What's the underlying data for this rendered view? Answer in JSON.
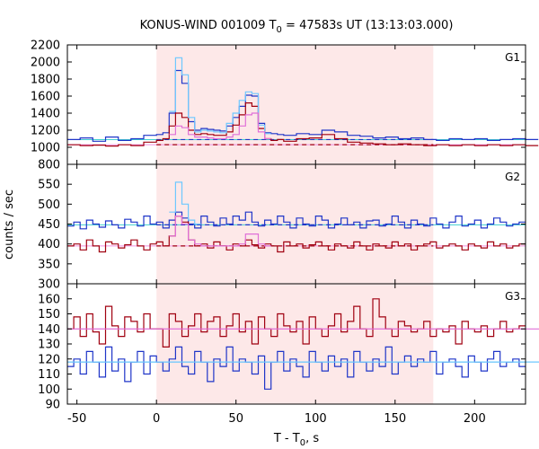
{
  "chart_data": {
    "type": "line",
    "title_main": "KONUS-WIND 001009 T",
    "title_sub": "0",
    "title_rest": " = 47583s UT (13:13:03.000)",
    "xlabel_main": "T - T",
    "xlabel_sub": "0",
    "xlabel_rest": ", s",
    "ylabel": "counts / sec",
    "xlim": [
      -56,
      232
    ],
    "xticks": [
      -50,
      0,
      50,
      100,
      150,
      200
    ],
    "highlight_interval": [
      0,
      174
    ],
    "colors": {
      "highlight": "#fde8e8",
      "blue": "#1f35c8",
      "darkred": "#a00010",
      "lightblue": "#6ec8ff",
      "pink": "#e070d8",
      "cyan_bg": "#40d0d0",
      "pink_bg": "#f090e0"
    },
    "panels": [
      {
        "label": "G1",
        "ylim": [
          800,
          2200
        ],
        "yticks": [
          800,
          1000,
          1200,
          1400,
          1600,
          1800,
          2000,
          2200
        ],
        "background_blue": 1090,
        "background_red": 1030,
        "series": [
          {
            "name": "blue",
            "x": [
              -56,
              -48,
              -40,
              -32,
              -24,
              -16,
              -8,
              0,
              4,
              8,
              12,
              16,
              20,
              24,
              28,
              32,
              36,
              40,
              44,
              48,
              52,
              56,
              60,
              64,
              68,
              72,
              76,
              80,
              88,
              96,
              104,
              112,
              120,
              128,
              136,
              144,
              152,
              160,
              168,
              176,
              184,
              192,
              200,
              208,
              216,
              224,
              232
            ],
            "y": [
              1090,
              1110,
              1070,
              1120,
              1080,
              1100,
              1140,
              1150,
              1170,
              1400,
              1900,
              1750,
              1300,
              1200,
              1220,
              1210,
              1200,
              1190,
              1250,
              1350,
              1480,
              1610,
              1600,
              1280,
              1170,
              1160,
              1150,
              1140,
              1160,
              1150,
              1200,
              1180,
              1140,
              1130,
              1110,
              1120,
              1100,
              1110,
              1090,
              1080,
              1100,
              1090,
              1100,
              1080,
              1090,
              1100,
              1090
            ]
          },
          {
            "name": "darkred",
            "x": [
              -56,
              -48,
              -40,
              -32,
              -24,
              -16,
              -8,
              0,
              4,
              8,
              12,
              16,
              20,
              24,
              28,
              32,
              36,
              40,
              44,
              48,
              52,
              56,
              60,
              64,
              68,
              72,
              76,
              80,
              88,
              96,
              104,
              112,
              120,
              128,
              136,
              144,
              152,
              160,
              168,
              176,
              184,
              192,
              200,
              208,
              216,
              224,
              232
            ],
            "y": [
              1030,
              1020,
              1025,
              1015,
              1030,
              1020,
              1060,
              1080,
              1100,
              1250,
              1400,
              1350,
              1200,
              1150,
              1160,
              1150,
              1140,
              1140,
              1180,
              1260,
              1380,
              1520,
              1480,
              1220,
              1100,
              1080,
              1090,
              1070,
              1100,
              1110,
              1150,
              1100,
              1060,
              1050,
              1040,
              1030,
              1040,
              1030,
              1020,
              1030,
              1020,
              1030,
              1020,
              1030,
              1020,
              1030,
              1020
            ]
          },
          {
            "name": "lightblue",
            "x": [
              8,
              12,
              16,
              20,
              24,
              28,
              32,
              36,
              40,
              44,
              48,
              52,
              56,
              60,
              64,
              68
            ],
            "y": [
              1420,
              2050,
              1850,
              1350,
              1180,
              1200,
              1190,
              1180,
              1170,
              1280,
              1400,
              1550,
              1650,
              1630,
              1260,
              1160
            ]
          },
          {
            "name": "pink",
            "x": [
              8,
              12,
              16,
              20,
              24,
              28,
              32,
              36,
              40,
              44,
              48,
              52,
              56,
              60,
              64,
              68
            ],
            "y": [
              1150,
              1250,
              1230,
              1150,
              1120,
              1120,
              1110,
              1100,
              1100,
              1120,
              1150,
              1250,
              1380,
              1400,
              1180,
              1100
            ]
          }
        ]
      },
      {
        "label": "G2",
        "ylim": [
          300,
          600
        ],
        "yticks": [
          300,
          350,
          400,
          450,
          500,
          550
        ],
        "background_blue": 448,
        "background_red": 395,
        "series": [
          {
            "name": "blue",
            "x": [
              -56,
              -52,
              -48,
              -44,
              -40,
              -36,
              -32,
              -28,
              -24,
              -20,
              -16,
              -12,
              -8,
              -4,
              0,
              4,
              8,
              12,
              16,
              20,
              24,
              28,
              32,
              36,
              40,
              44,
              48,
              52,
              56,
              60,
              64,
              68,
              72,
              76,
              80,
              84,
              88,
              92,
              96,
              100,
              104,
              108,
              112,
              116,
              120,
              124,
              128,
              132,
              136,
              140,
              144,
              148,
              152,
              156,
              160,
              164,
              168,
              172,
              176,
              180,
              184,
              188,
              192,
              196,
              200,
              204,
              208,
              212,
              216,
              220,
              224,
              228
            ],
            "y": [
              445,
              455,
              438,
              460,
              450,
              442,
              458,
              448,
              440,
              462,
              455,
              445,
              470,
              450,
              455,
              440,
              460,
              480,
              465,
              450,
              440,
              470,
              455,
              445,
              465,
              450,
              470,
              460,
              480,
              455,
              445,
              460,
              450,
              470,
              455,
              440,
              465,
              450,
              445,
              470,
              460,
              440,
              450,
              465,
              448,
              455,
              440,
              458,
              460,
              445,
              450,
              470,
              455,
              440,
              460,
              450,
              445,
              465,
              450,
              440,
              455,
              470,
              445,
              450,
              460,
              440,
              450,
              465,
              455,
              445,
              450,
              455
            ]
          },
          {
            "name": "darkred",
            "x": [
              -56,
              -52,
              -48,
              -44,
              -40,
              -36,
              -32,
              -28,
              -24,
              -20,
              -16,
              -12,
              -8,
              -4,
              0,
              4,
              8,
              12,
              16,
              20,
              24,
              28,
              32,
              36,
              40,
              44,
              48,
              52,
              56,
              60,
              64,
              68,
              72,
              76,
              80,
              84,
              88,
              92,
              96,
              100,
              104,
              108,
              112,
              116,
              120,
              124,
              128,
              132,
              136,
              140,
              144,
              148,
              152,
              156,
              160,
              164,
              168,
              172,
              176,
              180,
              184,
              188,
              192,
              196,
              200,
              204,
              208,
              212,
              216,
              220,
              224,
              228
            ],
            "y": [
              395,
              400,
              385,
              410,
              395,
              380,
              405,
              400,
              390,
              398,
              410,
              395,
              385,
              400,
              405,
              395,
              420,
              470,
              455,
              410,
              395,
              400,
              390,
              405,
              395,
              385,
              400,
              395,
              410,
              398,
              390,
              400,
              395,
              380,
              405,
              395,
              400,
              390,
              398,
              405,
              395,
              385,
              400,
              395,
              390,
              405,
              395,
              385,
              400,
              395,
              390,
              405,
              395,
              400,
              385,
              395,
              400,
              405,
              390,
              395,
              400,
              395,
              385,
              400,
              395,
              390,
              405,
              395,
              400,
              390,
              395,
              400
            ]
          },
          {
            "name": "lightblue",
            "x": [
              8,
              12,
              16,
              20,
              24
            ],
            "y": [
              480,
              555,
              500,
              460,
              450
            ]
          },
          {
            "name": "pink",
            "x": [
              8,
              12,
              16,
              20,
              24,
              28,
              52,
              56,
              60,
              64,
              68
            ],
            "y": [
              420,
              470,
              450,
              410,
              400,
              395,
              400,
              425,
              425,
              400,
              395
            ]
          }
        ]
      },
      {
        "label": "G3",
        "ylim": [
          90,
          170
        ],
        "yticks": [
          90,
          100,
          110,
          120,
          130,
          140,
          150,
          160
        ],
        "background_blue": 118,
        "background_red": 140,
        "series": [
          {
            "name": "blue",
            "x": [
              -56,
              -52,
              -48,
              -44,
              -40,
              -36,
              -32,
              -28,
              -24,
              -20,
              -16,
              -12,
              -8,
              -4,
              0,
              4,
              8,
              12,
              16,
              20,
              24,
              28,
              32,
              36,
              40,
              44,
              48,
              52,
              56,
              60,
              64,
              68,
              72,
              76,
              80,
              84,
              88,
              92,
              96,
              100,
              104,
              108,
              112,
              116,
              120,
              124,
              128,
              132,
              136,
              140,
              144,
              148,
              152,
              156,
              160,
              164,
              168,
              172,
              176,
              180,
              184,
              188,
              192,
              196,
              200,
              204,
              208,
              212,
              216,
              220,
              224,
              228
            ],
            "y": [
              115,
              120,
              110,
              125,
              118,
              108,
              128,
              112,
              120,
              105,
              118,
              125,
              110,
              122,
              118,
              112,
              120,
              128,
              115,
              110,
              125,
              118,
              105,
              120,
              115,
              128,
              112,
              120,
              118,
              110,
              122,
              100,
              118,
              125,
              112,
              120,
              115,
              108,
              125,
              118,
              112,
              122,
              115,
              120,
              108,
              125,
              118,
              112,
              120,
              115,
              128,
              110,
              118,
              122,
              115,
              120,
              118,
              125,
              110,
              118,
              120,
              115,
              108,
              122,
              118,
              112,
              120,
              125,
              115,
              118,
              120,
              115
            ]
          },
          {
            "name": "darkred",
            "x": [
              -56,
              -52,
              -48,
              -44,
              -40,
              -36,
              -32,
              -28,
              -24,
              -20,
              -16,
              -12,
              -8,
              -4,
              0,
              4,
              8,
              12,
              16,
              20,
              24,
              28,
              32,
              36,
              40,
              44,
              48,
              52,
              56,
              60,
              64,
              68,
              72,
              76,
              80,
              84,
              88,
              92,
              96,
              100,
              104,
              108,
              112,
              116,
              120,
              124,
              128,
              132,
              136,
              140,
              144,
              148,
              152,
              156,
              160,
              164,
              168,
              172,
              176,
              180,
              184,
              188,
              192,
              196,
              200,
              204,
              208,
              212,
              216,
              220,
              224,
              228
            ],
            "y": [
              140,
              148,
              135,
              150,
              138,
              130,
              155,
              142,
              135,
              148,
              145,
              138,
              150,
              140,
              140,
              128,
              150,
              145,
              135,
              142,
              150,
              138,
              145,
              148,
              135,
              142,
              150,
              138,
              145,
              130,
              148,
              140,
              135,
              150,
              142,
              138,
              145,
              130,
              148,
              140,
              135,
              142,
              150,
              138,
              145,
              155,
              140,
              135,
              160,
              148,
              140,
              135,
              145,
              142,
              138,
              140,
              145,
              135,
              140,
              138,
              142,
              130,
              145,
              140,
              138,
              142,
              135,
              140,
              145,
              138,
              140,
              142
            ]
          },
          {
            "name": "pink",
            "x": [
              -56,
              232
            ],
            "y": [
              140,
              140
            ]
          },
          {
            "name": "lightblue",
            "x": [
              -56,
              232
            ],
            "y": [
              118,
              118
            ]
          }
        ]
      }
    ]
  }
}
